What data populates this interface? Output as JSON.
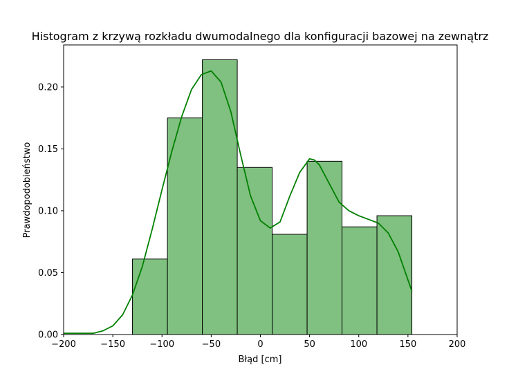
{
  "chart_data": {
    "type": "bar",
    "title": "Histogram z krzywą rozkładu dwumodalnego dla konfiguracji bazowej na zewnątrz",
    "xlabel": "Błąd [cm]",
    "ylabel": "Prawdopodobieństwo",
    "xlim": [
      -200,
      200
    ],
    "ylim": [
      0,
      0.234
    ],
    "xticks": [
      -200,
      -150,
      -100,
      -50,
      0,
      50,
      100,
      150,
      200
    ],
    "xtick_labels": [
      "−200",
      "−150",
      "−100",
      "−50",
      "0",
      "50",
      "100",
      "150",
      "200"
    ],
    "yticks": [
      0.0,
      0.05,
      0.1,
      0.15,
      0.2
    ],
    "ytick_labels": [
      "0.00",
      "0.05",
      "0.10",
      "0.15",
      "0.20"
    ],
    "grid": false,
    "colors": {
      "bar_fill": "#80c080",
      "bar_edge": "#000000",
      "curve": "#008000"
    },
    "bins": [
      {
        "x0": -130,
        "x1": -94.5,
        "value": 0.061
      },
      {
        "x0": -94.5,
        "x1": -59,
        "value": 0.175
      },
      {
        "x0": -59,
        "x1": -23.5,
        "value": 0.222
      },
      {
        "x0": -23.5,
        "x1": 12,
        "value": 0.135
      },
      {
        "x0": 12,
        "x1": 47.5,
        "value": 0.081
      },
      {
        "x0": 47.5,
        "x1": 83,
        "value": 0.14
      },
      {
        "x0": 83,
        "x1": 118.5,
        "value": 0.087
      },
      {
        "x0": 118.5,
        "x1": 154,
        "value": 0.096
      }
    ],
    "curve": {
      "x": [
        -200,
        -190,
        -180,
        -170,
        -160,
        -150,
        -140,
        -130,
        -120,
        -110,
        -100,
        -90,
        -80,
        -70,
        -60,
        -50,
        -40,
        -30,
        -20,
        -10,
        0,
        10,
        20,
        30,
        40,
        50,
        55,
        60,
        70,
        80,
        90,
        100,
        110,
        120,
        130,
        140,
        154
      ],
      "y": [
        0.001,
        0.001,
        0.001,
        0.001,
        0.003,
        0.007,
        0.016,
        0.032,
        0.055,
        0.085,
        0.117,
        0.148,
        0.176,
        0.198,
        0.21,
        0.213,
        0.204,
        0.18,
        0.145,
        0.112,
        0.092,
        0.086,
        0.091,
        0.112,
        0.131,
        0.142,
        0.141,
        0.137,
        0.122,
        0.107,
        0.1,
        0.096,
        0.093,
        0.09,
        0.082,
        0.067,
        0.035
      ]
    }
  }
}
